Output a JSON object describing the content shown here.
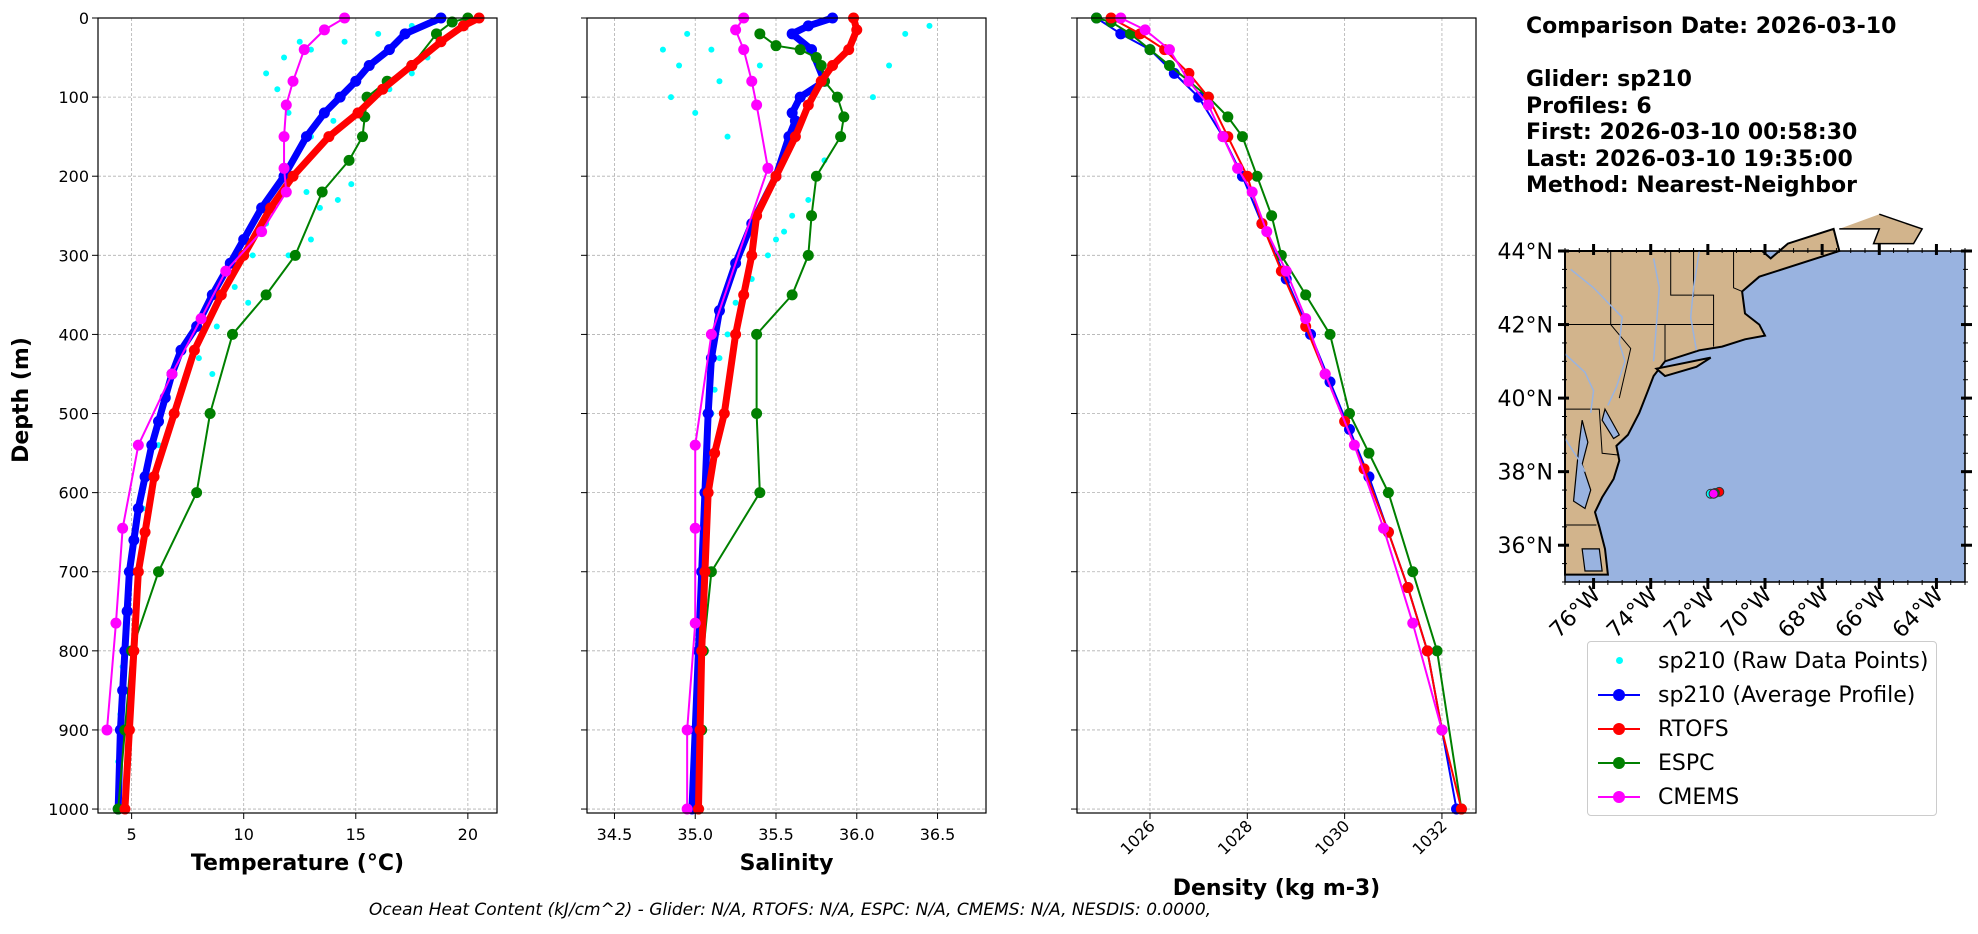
{
  "chart_data": [
    {
      "type": "line",
      "title": "",
      "xlabel": "Temperature (°C)",
      "ylabel": "Depth (m)",
      "xlim": [
        3.5,
        21.3
      ],
      "ylim": [
        1005,
        0
      ],
      "xticks": [
        5,
        10,
        15,
        20
      ],
      "yticks": [
        0,
        100,
        200,
        300,
        400,
        500,
        600,
        700,
        800,
        900,
        1000
      ],
      "grid": true,
      "raw": [
        [
          12.5,
          30
        ],
        [
          11.8,
          50
        ],
        [
          11.0,
          70
        ],
        [
          13.0,
          40
        ],
        [
          14.5,
          30
        ],
        [
          16.0,
          20
        ],
        [
          17.5,
          10
        ],
        [
          18.5,
          5
        ],
        [
          11.5,
          90
        ],
        [
          12.0,
          120
        ],
        [
          13.0,
          150
        ],
        [
          14.0,
          130
        ],
        [
          15.5,
          110
        ],
        [
          16.5,
          90
        ],
        [
          17.5,
          70
        ],
        [
          18.2,
          50
        ],
        [
          12.2,
          200
        ],
        [
          12.8,
          220
        ],
        [
          13.4,
          240
        ],
        [
          14.2,
          230
        ],
        [
          14.8,
          210
        ],
        [
          11.0,
          260
        ],
        [
          10.4,
          300
        ],
        [
          12.0,
          300
        ],
        [
          13.0,
          280
        ],
        [
          9.6,
          340
        ],
        [
          10.2,
          360
        ],
        [
          11.0,
          350
        ],
        [
          8.8,
          390
        ],
        [
          9.5,
          400
        ],
        [
          8.0,
          430
        ],
        [
          8.6,
          450
        ],
        [
          7.2,
          470
        ],
        [
          6.8,
          500
        ],
        [
          6.2,
          540
        ],
        [
          5.8,
          580
        ],
        [
          5.5,
          620
        ],
        [
          5.2,
          660
        ],
        [
          5.0,
          700
        ],
        [
          4.8,
          760
        ],
        [
          4.6,
          820
        ],
        [
          4.5,
          880
        ],
        [
          4.4,
          940
        ],
        [
          4.3,
          1000
        ]
      ],
      "series": [
        {
          "name": "sp210 (Average Profile)",
          "x": [
            18.8,
            17.2,
            16.5,
            15.6,
            15.0,
            14.3,
            13.6,
            12.8,
            11.8,
            10.8,
            10.0,
            9.4,
            8.6,
            7.9,
            7.2,
            6.8,
            6.5,
            6.2,
            5.9,
            5.6,
            5.3,
            5.1,
            4.9,
            4.8,
            4.7,
            4.6,
            4.5,
            4.4
          ],
          "y": [
            0,
            20,
            40,
            60,
            80,
            100,
            120,
            150,
            200,
            240,
            280,
            310,
            350,
            390,
            420,
            450,
            480,
            510,
            540,
            580,
            620,
            660,
            700,
            750,
            800,
            850,
            900,
            1000
          ]
        },
        {
          "name": "RTOFS",
          "x": [
            20.5,
            19.8,
            18.8,
            17.5,
            16.2,
            15.1,
            13.8,
            12.2,
            11.2,
            10.0,
            9.0,
            7.8,
            6.9,
            6.0,
            5.6,
            5.3,
            5.1,
            4.9,
            4.7
          ],
          "y": [
            0,
            10,
            30,
            60,
            90,
            120,
            150,
            200,
            240,
            300,
            350,
            420,
            500,
            580,
            650,
            700,
            800,
            900,
            1000
          ]
        },
        {
          "name": "ESPC",
          "x": [
            20.0,
            19.3,
            18.6,
            17.5,
            16.4,
            15.5,
            15.4,
            15.3,
            14.7,
            13.5,
            12.3,
            11.0,
            9.5,
            8.5,
            7.9,
            6.2,
            5.0,
            4.7,
            4.4
          ],
          "y": [
            0,
            5,
            20,
            60,
            80,
            100,
            125,
            150,
            180,
            220,
            300,
            350,
            400,
            500,
            600,
            700,
            800,
            900,
            1000
          ]
        },
        {
          "name": "CMEMS",
          "x": [
            14.5,
            13.6,
            12.7,
            12.2,
            11.9,
            11.8,
            11.8,
            11.9,
            10.8,
            9.2,
            8.1,
            6.8,
            5.3,
            4.6,
            4.3,
            3.9
          ],
          "y": [
            0,
            15,
            40,
            80,
            110,
            150,
            190,
            220,
            270,
            320,
            380,
            450,
            540,
            645,
            765,
            900
          ]
        }
      ]
    },
    {
      "type": "line",
      "title": "",
      "xlabel": "Salinity",
      "ylabel": "",
      "xlim": [
        34.33,
        36.8
      ],
      "ylim": [
        1005,
        0
      ],
      "xticks": [
        34.5,
        35.0,
        35.5,
        36.0,
        36.5
      ],
      "xtick_labels": [
        "34.5",
        "35.0",
        "35.5",
        "36.0",
        "36.5"
      ],
      "grid": true,
      "raw": [
        [
          34.8,
          40
        ],
        [
          34.9,
          60
        ],
        [
          34.95,
          20
        ],
        [
          35.1,
          40
        ],
        [
          35.15,
          80
        ],
        [
          34.85,
          100
        ],
        [
          35.0,
          120
        ],
        [
          35.2,
          150
        ],
        [
          35.4,
          60
        ],
        [
          36.3,
          20
        ],
        [
          36.45,
          10
        ],
        [
          36.2,
          60
        ],
        [
          36.1,
          100
        ],
        [
          35.9,
          150
        ],
        [
          35.8,
          180
        ],
        [
          35.7,
          230
        ],
        [
          35.55,
          270
        ],
        [
          35.45,
          300
        ],
        [
          35.35,
          330
        ],
        [
          35.25,
          360
        ],
        [
          35.2,
          400
        ],
        [
          35.15,
          430
        ],
        [
          35.12,
          470
        ],
        [
          35.1,
          500
        ],
        [
          35.08,
          550
        ],
        [
          35.07,
          600
        ],
        [
          35.06,
          650
        ],
        [
          35.05,
          700
        ],
        [
          35.04,
          800
        ],
        [
          35.03,
          900
        ],
        [
          35.02,
          1000
        ],
        [
          35.6,
          250
        ],
        [
          35.5,
          280
        ],
        [
          35.75,
          200
        ]
      ],
      "series": [
        {
          "name": "sp210 (Average Profile)",
          "x": [
            35.85,
            35.7,
            35.6,
            35.72,
            35.8,
            35.65,
            35.6,
            35.62,
            35.58,
            35.5,
            35.35,
            35.25,
            35.15,
            35.1,
            35.08,
            35.06,
            35.04,
            35.02,
            35.0,
            34.98
          ],
          "y": [
            0,
            10,
            20,
            40,
            80,
            100,
            120,
            130,
            150,
            200,
            260,
            310,
            370,
            430,
            500,
            600,
            700,
            800,
            900,
            1000
          ]
        },
        {
          "name": "RTOFS",
          "x": [
            35.98,
            36.0,
            35.95,
            35.85,
            35.78,
            35.7,
            35.62,
            35.5,
            35.38,
            35.35,
            35.3,
            35.25,
            35.18,
            35.12,
            35.08,
            35.06,
            35.04,
            35.03,
            35.02
          ],
          "y": [
            0,
            15,
            40,
            60,
            80,
            110,
            150,
            200,
            250,
            300,
            350,
            400,
            500,
            550,
            600,
            700,
            800,
            900,
            1000
          ]
        },
        {
          "name": "ESPC",
          "x": [
            35.4,
            35.5,
            35.65,
            35.75,
            35.78,
            35.8,
            35.88,
            35.92,
            35.9,
            35.75,
            35.72,
            35.7,
            35.6,
            35.38,
            35.38,
            35.4,
            35.1,
            35.05,
            35.04,
            35.02
          ],
          "y": [
            20,
            35,
            40,
            50,
            60,
            80,
            100,
            125,
            150,
            200,
            250,
            300,
            350,
            400,
            500,
            600,
            700,
            800,
            900,
            1000
          ]
        },
        {
          "name": "CMEMS",
          "x": [
            35.3,
            35.25,
            35.3,
            35.35,
            35.38,
            35.45,
            35.1,
            35.0,
            35.0,
            35.0,
            34.95,
            34.95
          ],
          "y": [
            0,
            15,
            40,
            80,
            110,
            190,
            400,
            540,
            645,
            765,
            900,
            1000
          ]
        }
      ]
    },
    {
      "type": "line",
      "title": "",
      "xlabel": "Density (kg m-3)",
      "ylabel": "",
      "xlim": [
        1024.5,
        1032.7
      ],
      "ylim": [
        1005,
        0
      ],
      "xticks": [
        1026,
        1028,
        1030,
        1032
      ],
      "grid": true,
      "series": [
        {
          "name": "sp210 (Average Profile)",
          "x": [
            1024.9,
            1025.4,
            1026.0,
            1026.5,
            1027.0,
            1027.5,
            1027.9,
            1028.3,
            1028.8,
            1029.3,
            1029.7,
            1030.1,
            1030.5,
            1030.9,
            1031.3,
            1031.7,
            1032.0,
            1032.3
          ],
          "y": [
            0,
            20,
            40,
            70,
            100,
            150,
            200,
            260,
            330,
            400,
            460,
            520,
            580,
            650,
            720,
            800,
            900,
            1000
          ]
        },
        {
          "name": "RTOFS",
          "x": [
            1025.2,
            1025.8,
            1026.3,
            1026.8,
            1027.2,
            1027.6,
            1028.0,
            1028.3,
            1028.7,
            1029.2,
            1029.6,
            1030.0,
            1030.4,
            1030.9,
            1031.3,
            1031.7,
            1032.0,
            1032.4
          ],
          "y": [
            0,
            20,
            40,
            70,
            100,
            150,
            200,
            260,
            320,
            390,
            450,
            510,
            570,
            650,
            720,
            800,
            900,
            1000
          ]
        },
        {
          "name": "ESPC",
          "x": [
            1024.9,
            1025.2,
            1025.6,
            1026.0,
            1026.4,
            1026.8,
            1027.2,
            1027.6,
            1027.9,
            1028.2,
            1028.5,
            1028.7,
            1029.2,
            1029.7,
            1030.1,
            1030.5,
            1030.9,
            1031.4,
            1031.9,
            1032.4
          ],
          "y": [
            0,
            5,
            20,
            40,
            60,
            80,
            100,
            125,
            150,
            200,
            250,
            300,
            350,
            400,
            500,
            550,
            600,
            700,
            800,
            1000
          ]
        },
        {
          "name": "CMEMS",
          "x": [
            1025.4,
            1025.9,
            1026.4,
            1026.8,
            1027.2,
            1027.5,
            1027.8,
            1028.1,
            1028.4,
            1028.8,
            1029.2,
            1029.6,
            1030.2,
            1030.8,
            1031.4,
            1032.0
          ],
          "y": [
            0,
            15,
            40,
            80,
            110,
            150,
            190,
            220,
            270,
            320,
            380,
            450,
            540,
            645,
            765,
            900
          ]
        }
      ]
    },
    {
      "type": "scatter",
      "title": "",
      "xlim": [
        -77,
        -63
      ],
      "ylim": [
        35,
        44
      ],
      "xticks": [
        -76,
        -74,
        -72,
        -70,
        -68,
        -66,
        -64
      ],
      "xtick_labels": [
        "76°W",
        "74°W",
        "72°W",
        "70°W",
        "68°W",
        "66°W",
        "64°W"
      ],
      "yticks": [
        36,
        38,
        40,
        42,
        44
      ],
      "ytick_labels": [
        "36°N",
        "38°N",
        "40°N",
        "42°N",
        "44°N"
      ],
      "points": [
        {
          "name": "sp210 (Raw Data Points)",
          "lon": -71.9,
          "lat": 37.4
        },
        {
          "name": "RTOFS",
          "lon": -71.6,
          "lat": 37.45
        },
        {
          "name": "ESPC",
          "lon": -71.75,
          "lat": 37.42
        },
        {
          "name": "CMEMS",
          "lon": -71.8,
          "lat": 37.4
        }
      ],
      "colors": {
        "land": "#d2b48c",
        "ocean": "#99b3e0"
      }
    }
  ],
  "y_ticks_text": [
    "0",
    "100",
    "200",
    "300",
    "400",
    "500",
    "600",
    "700",
    "800",
    "900",
    "1000"
  ],
  "info": {
    "date": "Comparison Date: 2026-03-10",
    "glider": "Glider: sp210",
    "profiles": "Profiles: 6",
    "first": "First: 2026-03-10 00:58:30",
    "last": "Last: 2026-03-10 19:35:00",
    "method": "Method: Nearest-Neighbor"
  },
  "legend": [
    {
      "label": "sp210 (Raw Data Points)",
      "color": "#00ffff",
      "style": "points"
    },
    {
      "label": "sp210 (Average Profile)",
      "color": "#0000ff",
      "style": "line-marker"
    },
    {
      "label": "RTOFS",
      "color": "#ff0000",
      "style": "line-marker"
    },
    {
      "label": "ESPC",
      "color": "#008000",
      "style": "line-marker"
    },
    {
      "label": "CMEMS",
      "color": "#ff00ff",
      "style": "line-marker"
    }
  ],
  "colors": {
    "sp210 (Raw Data Points)": "#00ffff",
    "sp210 (Average Profile)": "#0000ff",
    "RTOFS": "#ff0000",
    "ESPC": "#008000",
    "CMEMS": "#ff00ff"
  },
  "footer": "Ocean Heat Content (kJ/cm^2) - Glider: N/A,  RTOFS: N/A,  ESPC: N/A,  CMEMS: N/A,  NESDIS: 0.0000,"
}
